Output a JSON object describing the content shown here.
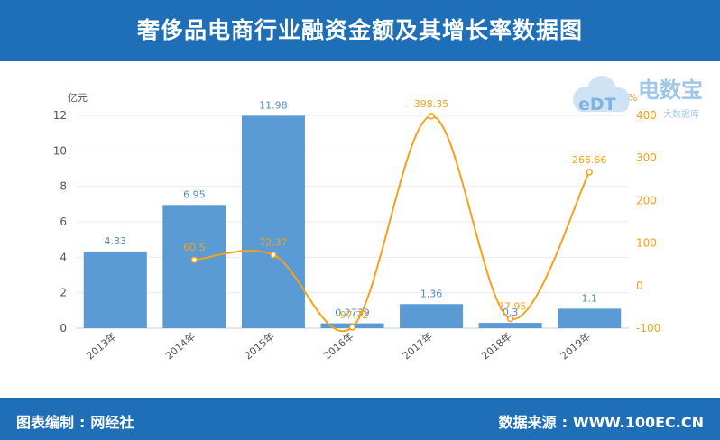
{
  "header": {
    "title": "奢侈品电商行业融资金额及其增长率数据图"
  },
  "footer": {
    "credit_label": "图表编制",
    "credit_value": "网经社",
    "source_label": "数据来源",
    "source_value": "WWW.100EC.CN"
  },
  "logo": {
    "brand_text": "电数宝",
    "latin_text": "eDT",
    "sub_text": "大数据库"
  },
  "colors": {
    "bar": "#5b9bd5",
    "line": "#f5a11a",
    "header": "#1e6fb8",
    "axis_text": "#555555"
  },
  "chart_data": {
    "type": "bar",
    "categories": [
      "2013年",
      "2014年",
      "2015年",
      "2016年",
      "2017年",
      "2018年",
      "2019年"
    ],
    "series": [
      {
        "type": "bar",
        "axis": "left",
        "values": [
          4.33,
          6.95,
          11.98,
          0.2739,
          1.36,
          0.3,
          1.1
        ],
        "labels": [
          "4.33",
          "6.95",
          "11.98",
          "0.2739",
          "1.36",
          "0.3",
          "1.1"
        ]
      },
      {
        "type": "line",
        "axis": "right",
        "values": [
          null,
          60.5,
          72.37,
          -97.72,
          398.35,
          -77.95,
          266.66
        ],
        "labels": [
          "",
          "60.5",
          "72.37",
          "-97.72",
          "398.35",
          "-77.95",
          "266.66"
        ]
      }
    ],
    "y_left": {
      "unit": "亿元",
      "min": 0,
      "max": 12,
      "ticks": [
        0,
        2,
        4,
        6,
        8,
        10,
        12
      ]
    },
    "y_right": {
      "unit": "%",
      "min": -100,
      "max": 400,
      "ticks": [
        -100,
        0,
        100,
        200,
        300,
        400
      ]
    },
    "grid": true,
    "legend": "none"
  }
}
